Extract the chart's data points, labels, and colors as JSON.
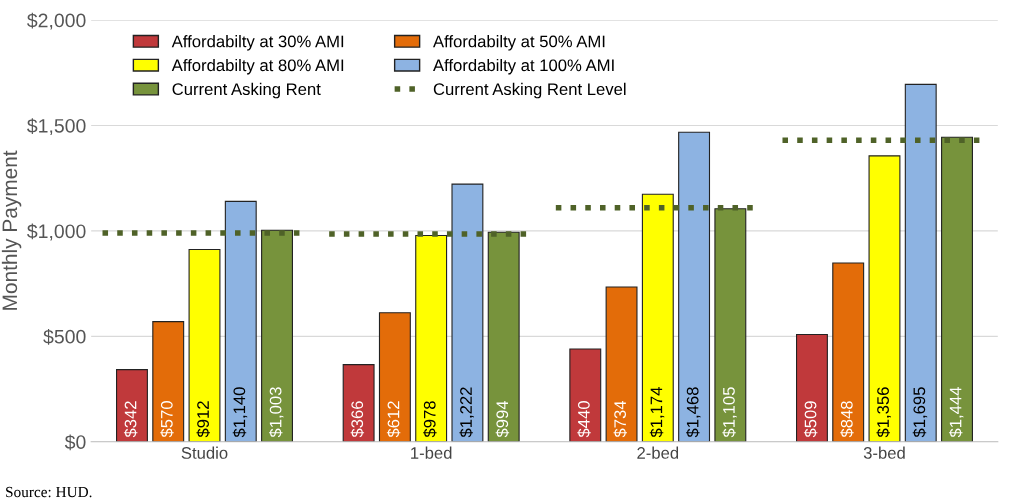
{
  "chart_data": {
    "type": "bar",
    "ylabel": "Monthly Payment",
    "categories": [
      "Studio",
      "1-bed",
      "2-bed",
      "3-bed"
    ],
    "series": [
      {
        "name": "Affordabilty at 30% AMI",
        "color": "#c0393b",
        "values": [
          342,
          366,
          440,
          509
        ],
        "value_labels": [
          "$342",
          "$366",
          "$440",
          "$509"
        ]
      },
      {
        "name": "Affordabilty at 50% AMI",
        "color": "#e36c09",
        "values": [
          570,
          612,
          734,
          848
        ],
        "value_labels": [
          "$570",
          "$612",
          "$734",
          "$848"
        ]
      },
      {
        "name": "Affordabilty at 80% AMI",
        "color": "#ffff00",
        "values": [
          912,
          978,
          1174,
          1356
        ],
        "value_labels": [
          "$912",
          "$978",
          "$1,174",
          "$1,356"
        ]
      },
      {
        "name": "Affordabilty at 100% AMI",
        "color": "#8db3e2",
        "values": [
          1140,
          1222,
          1468,
          1695
        ],
        "value_labels": [
          "$1,140",
          "$1,222",
          "$1,468",
          "$1,695"
        ]
      },
      {
        "name": "Current Asking Rent",
        "color": "#77933c",
        "values": [
          1003,
          994,
          1105,
          1444
        ],
        "value_labels": [
          "$1,003",
          "$994",
          "$1,105",
          "$1,444"
        ]
      }
    ],
    "ref_lines": [
      {
        "axis": "y",
        "value": 990,
        "label": "Current Asking Rent Level",
        "color": "#4f6228",
        "line_style": "dotted"
      },
      {
        "axis": "y",
        "value": 985,
        "label": null,
        "color": "#4f6228",
        "line_style": "dotted"
      },
      {
        "axis": "y",
        "value": 1110,
        "label": null,
        "color": "#4f6228",
        "line_style": "dotted"
      },
      {
        "axis": "y",
        "value": 1430,
        "label": null,
        "color": "#4f6228",
        "line_style": "dotted"
      }
    ],
    "ylim": [
      0,
      2000
    ],
    "yticks": [
      {
        "value": 0,
        "label": "$0"
      },
      {
        "value": 500,
        "label": "$500"
      },
      {
        "value": 1000,
        "label": "$1,000"
      },
      {
        "value": 1500,
        "label": "$1,500"
      },
      {
        "value": 2000,
        "label": "$2,000"
      }
    ],
    "grid": "y",
    "legend": "top left",
    "annotations": [
      "Source: HUD."
    ]
  }
}
